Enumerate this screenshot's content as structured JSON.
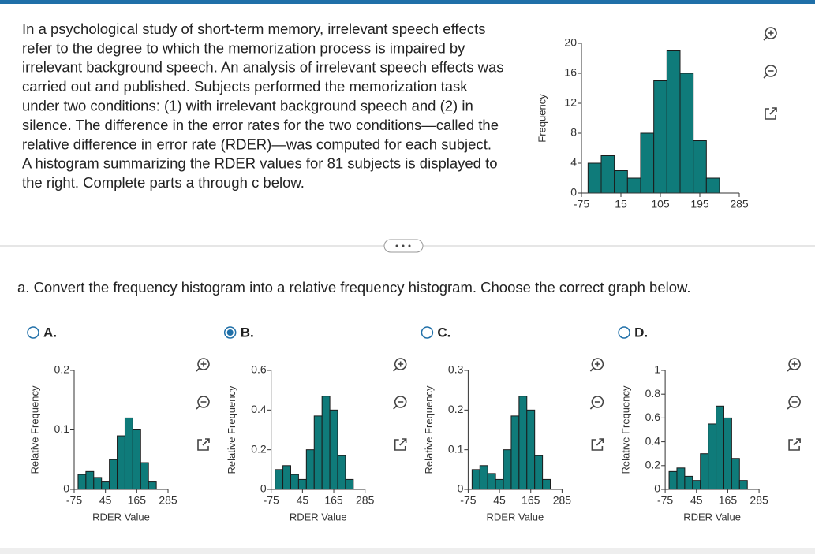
{
  "question": {
    "lines": [
      "In a psychological study of short-term memory, irrelevant speech effects",
      "refer to the degree to which the memorization process is impaired by",
      "irrelevant background speech. An analysis of irrelevant speech effects was",
      "carried out and published. Subjects performed the memorization task",
      "under two conditions: (1) with irrelevant background speech and (2) in",
      "silence. The difference in the error rates for the two conditions—called the",
      "relative difference in error rate (RDER)—was computed for each subject.",
      "A histogram summarizing the RDER values for 81 subjects is displayed to",
      "the right. Complete parts a through c below."
    ],
    "part_a": "a. Convert the frequency histogram into a relative frequency histogram. Choose the correct graph below."
  },
  "main_chart": {
    "type": "histogram",
    "ylabel": "Frequency",
    "bins": [
      -60,
      -30,
      0,
      30,
      60,
      90,
      120,
      150,
      180,
      210,
      240
    ],
    "values": [
      4,
      5,
      3,
      2,
      8,
      15,
      19,
      16,
      7,
      2
    ],
    "xlim": [
      -75,
      285
    ],
    "xticks": [
      -75,
      15,
      105,
      195,
      285
    ],
    "ylim": [
      0,
      20
    ],
    "yticks": [
      0,
      4,
      8,
      12,
      16,
      20
    ],
    "color": "#0f7b7a"
  },
  "options": [
    {
      "label": "A.",
      "selected": false,
      "chart": {
        "type": "histogram",
        "ylabel": "Relative Frequency",
        "xlabel": "RDER Value",
        "bins": [
          -60,
          -30,
          0,
          30,
          60,
          90,
          120,
          150,
          180,
          210,
          240
        ],
        "values": [
          0.025,
          0.03,
          0.02,
          0.0125,
          0.05,
          0.09,
          0.12,
          0.1,
          0.045,
          0.0125
        ],
        "xlim": [
          -75,
          285
        ],
        "xticks": [
          -75,
          45,
          165,
          285
        ],
        "ylim": [
          0,
          0.2
        ],
        "yticks": [
          0,
          0.1,
          0.2
        ],
        "color": "#0f7b7a"
      }
    },
    {
      "label": "B.",
      "selected": true,
      "chart": {
        "type": "histogram",
        "ylabel": "Relative Frequency",
        "xlabel": "RDER Value",
        "bins": [
          -60,
          -30,
          0,
          30,
          60,
          90,
          120,
          150,
          180,
          210,
          240
        ],
        "values": [
          0.1,
          0.12,
          0.075,
          0.05,
          0.2,
          0.37,
          0.47,
          0.4,
          0.17,
          0.05
        ],
        "xlim": [
          -75,
          285
        ],
        "xticks": [
          -75,
          45,
          165,
          285
        ],
        "ylim": [
          0,
          0.6
        ],
        "yticks": [
          0,
          0.2,
          0.4,
          0.6
        ],
        "color": "#0f7b7a"
      }
    },
    {
      "label": "C.",
      "selected": false,
      "chart": {
        "type": "histogram",
        "ylabel": "Relative Frequency",
        "xlabel": "RDER Value",
        "bins": [
          -60,
          -30,
          0,
          30,
          60,
          90,
          120,
          150,
          180,
          210,
          240
        ],
        "values": [
          0.05,
          0.06,
          0.04,
          0.025,
          0.1,
          0.185,
          0.235,
          0.2,
          0.085,
          0.025
        ],
        "xlim": [
          -75,
          285
        ],
        "xticks": [
          -75,
          45,
          165,
          285
        ],
        "ylim": [
          0,
          0.3
        ],
        "yticks": [
          0,
          0.1,
          0.2,
          0.3
        ],
        "color": "#0f7b7a"
      }
    },
    {
      "label": "D.",
      "selected": false,
      "chart": {
        "type": "histogram",
        "ylabel": "Relative Frequency",
        "xlabel": "RDER Value",
        "bins": [
          -60,
          -30,
          0,
          30,
          60,
          90,
          120,
          150,
          180,
          210,
          240
        ],
        "values": [
          0.15,
          0.18,
          0.11,
          0.075,
          0.3,
          0.55,
          0.7,
          0.6,
          0.26,
          0.075
        ],
        "xlim": [
          -75,
          285
        ],
        "xticks": [
          -75,
          45,
          165,
          285
        ],
        "ylim": [
          0,
          1
        ],
        "yticks": [
          0,
          0.2,
          0.4,
          0.6,
          0.8,
          1
        ],
        "color": "#0f7b7a"
      }
    }
  ]
}
